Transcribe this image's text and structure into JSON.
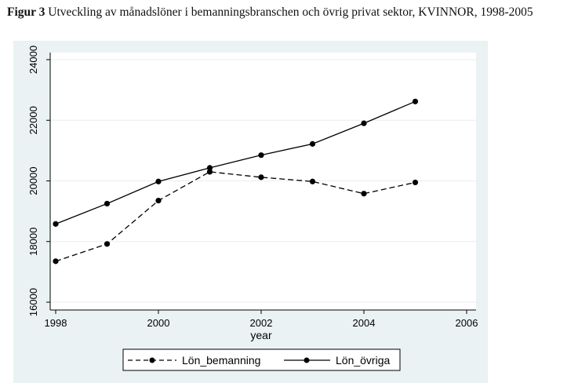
{
  "caption": {
    "figure_label": "Figur 3",
    "text": "Utveckling av månadslöner i bemanningsbranschen och övrig privat sektor, KVINNOR, 1998-2005"
  },
  "chart_data": {
    "type": "line",
    "xlabel": "year",
    "ylabel": "",
    "xlim": [
      1998,
      2006
    ],
    "ylim": [
      16000,
      24000
    ],
    "x_ticks": [
      "1998",
      "2000",
      "2002",
      "2004",
      "2006"
    ],
    "y_ticks": [
      "16000",
      "18000",
      "20000",
      "22000",
      "24000"
    ],
    "grid": true,
    "legend_position": "bottom",
    "x": [
      1998,
      1999,
      2000,
      2001,
      2002,
      2003,
      2004,
      2005
    ],
    "series": [
      {
        "name": "Lön_bemanning",
        "style": "dashed",
        "marker": "circle",
        "color": "#000000",
        "values": [
          17350,
          17920,
          19350,
          20300,
          20120,
          19980,
          19580,
          19950
        ]
      },
      {
        "name": "Lön_övriga",
        "style": "solid",
        "marker": "circle",
        "color": "#000000",
        "values": [
          18580,
          19250,
          19980,
          20430,
          20850,
          21220,
          21900,
          22620
        ]
      }
    ],
    "colors": {
      "background": "#eaf2f3",
      "plot_area": "#ffffff",
      "grid": "#e9eef0"
    }
  }
}
